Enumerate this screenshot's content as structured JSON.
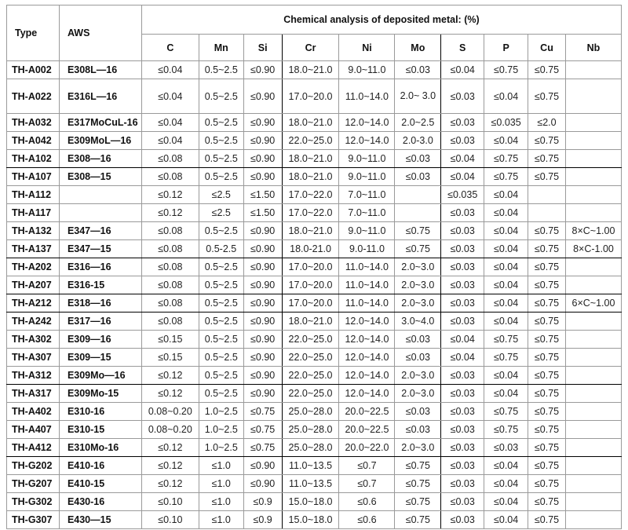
{
  "table": {
    "group_header": "Chemical analysis of deposited metal: (%)",
    "headers": {
      "type": "Type",
      "aws": "AWS"
    },
    "elements": [
      "C",
      "Mn",
      "Si",
      "Cr",
      "Ni",
      "Mo",
      "S",
      "P",
      "Cu",
      "Nb"
    ],
    "rows": [
      {
        "type": "TH-A002",
        "aws": "E308L—16",
        "v": [
          "≤0.04",
          "0.5~2.5",
          "≤0.90",
          "18.0~21.0",
          "9.0~11.0",
          "≤0.03",
          "≤0.04",
          "≤0.75",
          "≤0.75",
          ""
        ]
      },
      {
        "type": "TH-A022",
        "aws": "E316L—16",
        "v": [
          "≤0.04",
          "0.5~2.5",
          "≤0.90",
          "17.0~20.0",
          "11.0~14.0",
          "2.0~ 3.0",
          "≤0.03",
          "≤0.04",
          "≤0.75",
          ""
        ]
      },
      {
        "type": "TH-A032",
        "aws": "E317MoCuL-16",
        "v": [
          "≤0.04",
          "0.5~2.5",
          "≤0.90",
          "18.0~21.0",
          "12.0~14.0",
          "2.0~2.5",
          "≤0.03",
          "≤0.035",
          "≤2.0",
          ""
        ]
      },
      {
        "type": "TH-A042",
        "aws": "E309MoL—16",
        "v": [
          "≤0.04",
          "0.5~2.5",
          "≤0.90",
          "22.0~25.0",
          "12.0~14.0",
          "2.0-3.0",
          "≤0.03",
          "≤0.04",
          "≤0.75",
          ""
        ]
      },
      {
        "type": "TH-A102",
        "aws": "E308—16",
        "v": [
          "≤0.08",
          "0.5~2.5",
          "≤0.90",
          "18.0~21.0",
          "9.0~11.0",
          "≤0.03",
          "≤0.04",
          "≤0.75",
          "≤0.75",
          ""
        ]
      },
      {
        "type": "TH-A107",
        "aws": "E308—15",
        "v": [
          "≤0.08",
          "0.5~2.5",
          "≤0.90",
          "18.0~21.0",
          "9.0~11.0",
          "≤0.03",
          "≤0.04",
          "≤0.75",
          "≤0.75",
          ""
        ]
      },
      {
        "type": "TH-A112",
        "aws": "",
        "v": [
          "≤0.12",
          "≤2.5",
          "≤1.50",
          "17.0~22.0",
          "7.0~11.0",
          "",
          "≤0.035",
          "≤0.04",
          "",
          ""
        ]
      },
      {
        "type": "TH-A117",
        "aws": "",
        "v": [
          "≤0.12",
          "≤2.5",
          "≤1.50",
          "17.0~22.0",
          "7.0~11.0",
          "",
          "≤0.03",
          "≤0.04",
          "",
          ""
        ]
      },
      {
        "type": "TH-A132",
        "aws": "E347—16",
        "v": [
          "≤0.08",
          "0.5~2.5",
          "≤0.90",
          "18.0~21.0",
          "9.0~11.0",
          "≤0.75",
          "≤0.03",
          "≤0.04",
          "≤0.75",
          "8×C~1.00"
        ]
      },
      {
        "type": "TH-A137",
        "aws": "E347—15",
        "v": [
          "≤0.08",
          "0.5-2.5",
          "≤0.90",
          "18.0-21.0",
          "9.0-11.0",
          "≤0.75",
          "≤0.03",
          "≤0.04",
          "≤0.75",
          "8×C-1.00"
        ]
      },
      {
        "type": "TH-A202",
        "aws": "E316—16",
        "v": [
          "≤0.08",
          "0.5~2.5",
          "≤0.90",
          "17.0~20.0",
          "11.0~14.0",
          "2.0~3.0",
          "≤0.03",
          "≤0.04",
          "≤0.75",
          ""
        ]
      },
      {
        "type": "TH-A207",
        "aws": "E316-15",
        "v": [
          "≤0.08",
          "0.5~2.5",
          "≤0.90",
          "17.0~20.0",
          "11.0~14.0",
          "2.0~3.0",
          "≤0.03",
          "≤0.04",
          "≤0.75",
          ""
        ]
      },
      {
        "type": "TH-A212",
        "aws": "E318—16",
        "v": [
          "≤0.08",
          "0.5~2.5",
          "≤0.90",
          "17.0~20.0",
          "11.0~14.0",
          "2.0~3.0",
          "≤0.03",
          "≤0.04",
          "≤0.75",
          "6×C~1.00"
        ]
      },
      {
        "type": "TH-A242",
        "aws": "E317—16",
        "v": [
          "≤0.08",
          "0.5~2.5",
          "≤0.90",
          "18.0~21.0",
          "12.0~14.0",
          "3.0~4.0",
          "≤0.03",
          "≤0.04",
          "≤0.75",
          ""
        ]
      },
      {
        "type": "TH-A302",
        "aws": "E309—16",
        "v": [
          "≤0.15",
          "0.5~2.5",
          "≤0.90",
          "22.0~25.0",
          "12.0~14.0",
          "≤0.03",
          "≤0.04",
          "≤0.75",
          "≤0.75",
          ""
        ]
      },
      {
        "type": "TH-A307",
        "aws": "E309—15",
        "v": [
          "≤0.15",
          "0.5~2.5",
          "≤0.90",
          "22.0~25.0",
          "12.0~14.0",
          "≤0.03",
          "≤0.04",
          "≤0.75",
          "≤0.75",
          ""
        ]
      },
      {
        "type": "TH-A312",
        "aws": "E309Mo—16",
        "v": [
          "≤0.12",
          "0.5~2.5",
          "≤0.90",
          "22.0~25.0",
          "12.0~14.0",
          "2.0~3.0",
          "≤0.03",
          "≤0.04",
          "≤0.75",
          ""
        ]
      },
      {
        "type": "TH-A317",
        "aws": "E309Mo-15",
        "v": [
          "≤0.12",
          "0.5~2.5",
          "≤0.90",
          "22.0~25.0",
          "12.0~14.0",
          "2.0~3.0",
          "≤0.03",
          "≤0.04",
          "≤0.75",
          ""
        ]
      },
      {
        "type": "TH-A402",
        "aws": "E310-16",
        "v": [
          "0.08~0.20",
          "1.0~2.5",
          "≤0.75",
          "25.0~28.0",
          "20.0~22.5",
          "≤0.03",
          "≤0.03",
          "≤0.75",
          "≤0.75",
          ""
        ]
      },
      {
        "type": "TH-A407",
        "aws": "E310-15",
        "v": [
          "0.08~0.20",
          "1.0~2.5",
          "≤0.75",
          "25.0~28.0",
          "20.0~22.5",
          "≤0.03",
          "≤0.03",
          "≤0.75",
          "≤0.75",
          ""
        ]
      },
      {
        "type": "TH-A412",
        "aws": "E310Mo-16",
        "v": [
          "≤0.12",
          "1.0~2.5",
          "≤0.75",
          "25.0~28.0",
          "20.0~22.0",
          "2.0~3.0",
          "≤0.03",
          "≤0.03",
          "≤0.75",
          ""
        ]
      },
      {
        "type": "TH-G202",
        "aws": "E410-16",
        "v": [
          "≤0.12",
          "≤1.0",
          "≤0.90",
          "11.0~13.5",
          "≤0.7",
          "≤0.75",
          "≤0.03",
          "≤0.04",
          "≤0.75",
          ""
        ]
      },
      {
        "type": "TH-G207",
        "aws": "E410-15",
        "v": [
          "≤0.12",
          "≤1.0",
          "≤0.90",
          "11.0~13.5",
          "≤0.7",
          "≤0.75",
          "≤0.03",
          "≤0.04",
          "≤0.75",
          ""
        ]
      },
      {
        "type": "TH-G302",
        "aws": "E430-16",
        "v": [
          "≤0.10",
          "≤1.0",
          "≤0.9",
          "15.0~18.0",
          "≤0.6",
          "≤0.75",
          "≤0.03",
          "≤0.04",
          "≤0.75",
          ""
        ]
      },
      {
        "type": "TH-G307",
        "aws": "E430—15",
        "v": [
          "≤0.10",
          "≤1.0",
          "≤0.9",
          "15.0~18.0",
          "≤0.6",
          "≤0.75",
          "≤0.03",
          "≤0.04",
          "≤0.75",
          ""
        ]
      }
    ]
  }
}
